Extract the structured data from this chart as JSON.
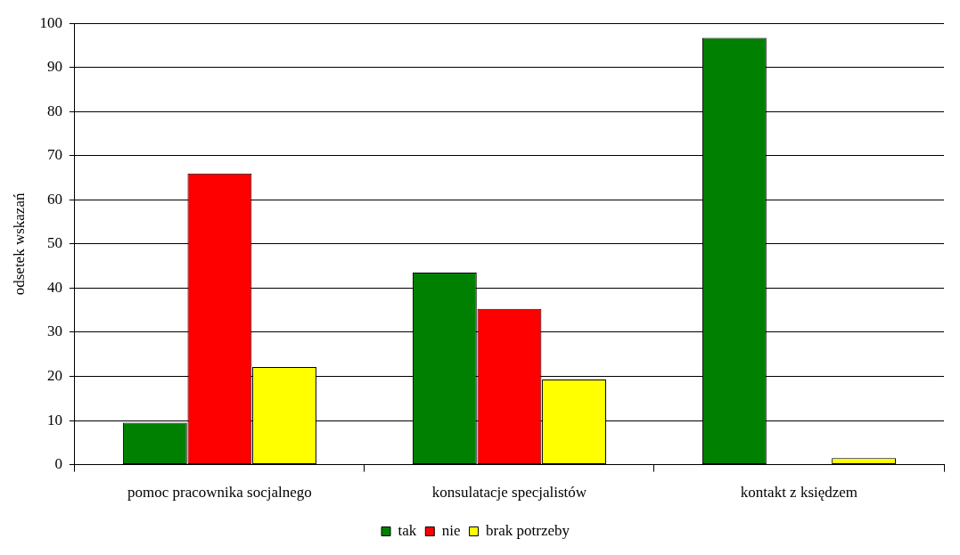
{
  "chart_data": {
    "type": "bar",
    "ylabel": "odsetek wskazań",
    "categories": [
      "pomoc pracownika socjalnego",
      "konsulatacje specjalistów",
      "kontakt z księdzem"
    ],
    "series": [
      {
        "name": "tak",
        "color": "#008000",
        "values": [
          9.5,
          43.5,
          96.7
        ]
      },
      {
        "name": "nie",
        "color": "#ff0000",
        "values": [
          66,
          35.3,
          0
        ]
      },
      {
        "name": "brak potrzeby",
        "color": "#ffff00",
        "values": [
          22.1,
          19.3,
          1.5
        ]
      }
    ],
    "ylim": [
      0,
      100
    ],
    "yticks": [
      0,
      10,
      20,
      30,
      40,
      50,
      60,
      70,
      80,
      90,
      100
    ],
    "grid": "y",
    "legend": "bottom"
  }
}
